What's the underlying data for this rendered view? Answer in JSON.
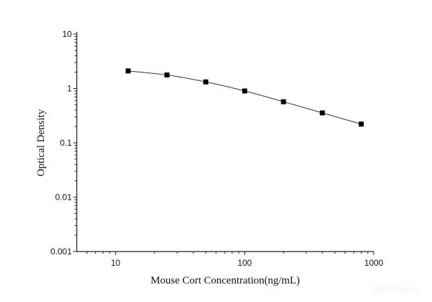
{
  "chart_data": {
    "type": "line",
    "title": "",
    "xlabel": "Mouse Cort Concentration(ng/mL)",
    "ylabel": "Optical Density",
    "x_scale": "log",
    "y_scale": "log",
    "xlim": [
      5,
      1000
    ],
    "ylim": [
      0.001,
      10
    ],
    "x_ticks": [
      {
        "value": 10,
        "label": "10"
      },
      {
        "value": 100,
        "label": "100"
      },
      {
        "value": 1000,
        "label": "1000"
      }
    ],
    "y_ticks": [
      {
        "value": 0.001,
        "label": "0.001"
      },
      {
        "value": 0.01,
        "label": "0.01"
      },
      {
        "value": 0.1,
        "label": "0.1"
      },
      {
        "value": 1,
        "label": "1"
      },
      {
        "value": 10,
        "label": "10"
      }
    ],
    "grid": false,
    "series": [
      {
        "marker": "square",
        "color": "#000000",
        "x": [
          12.5,
          25,
          50,
          100,
          200,
          400,
          800
        ],
        "y": [
          2.1,
          1.77,
          1.32,
          0.9,
          0.57,
          0.355,
          0.221
        ]
      }
    ],
    "watermark": "Elabscience"
  }
}
